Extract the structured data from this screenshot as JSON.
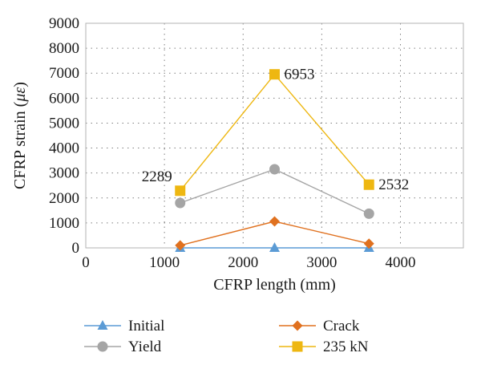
{
  "chart_data": {
    "type": "line",
    "xlabel": "CFRP length (mm)",
    "ylabel_prefix": "CFRP strain (",
    "ylabel_unit": "με",
    "ylabel_suffix": ")",
    "xlim": [
      0,
      4800
    ],
    "ylim": [
      0,
      9000
    ],
    "x_ticks": [
      0,
      1000,
      2000,
      3000,
      4000
    ],
    "y_ticks": [
      0,
      1000,
      2000,
      3000,
      4000,
      5000,
      6000,
      7000,
      8000,
      9000
    ],
    "grid": true,
    "legend_position": "bottom",
    "series": [
      {
        "name": "Initial",
        "color": "#5b9bd5",
        "marker": "triangle",
        "x": [
          1200,
          2400,
          3600
        ],
        "y": [
          0,
          0,
          0
        ]
      },
      {
        "name": "Yield",
        "color": "#a5a5a5",
        "marker": "circle",
        "x": [
          1200,
          2400,
          3600
        ],
        "y": [
          1800,
          3150,
          1370
        ]
      },
      {
        "name": "Crack",
        "color": "#e0711f",
        "marker": "diamond",
        "x": [
          1200,
          2400,
          3600
        ],
        "y": [
          100,
          1060,
          170
        ]
      },
      {
        "name": "235 kN",
        "color": "#eeb711",
        "marker": "square",
        "x": [
          1200,
          2400,
          3600
        ],
        "y": [
          2289,
          6953,
          2532
        ]
      }
    ],
    "annotations": [
      {
        "text": "2289",
        "x": 1200,
        "y": 2289,
        "anchor": "left"
      },
      {
        "text": "6953",
        "x": 2400,
        "y": 6953,
        "anchor": "right"
      },
      {
        "text": "2532",
        "x": 3600,
        "y": 2532,
        "anchor": "right"
      }
    ]
  }
}
